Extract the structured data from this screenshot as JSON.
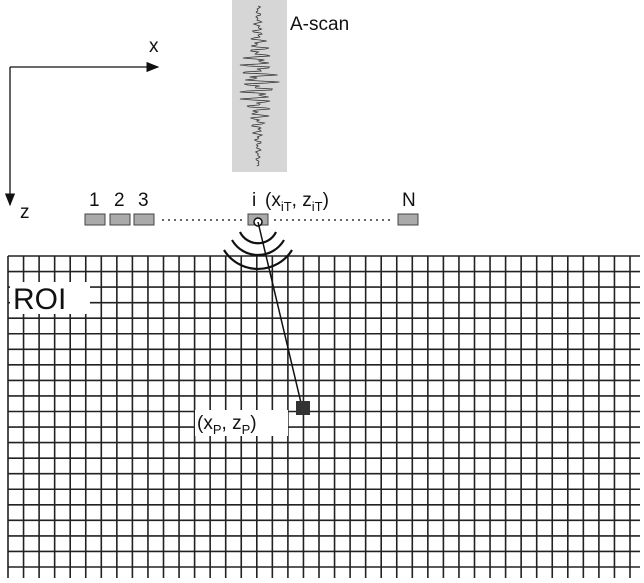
{
  "axes": {
    "x_label": "x",
    "z_label": "z"
  },
  "a_scan": {
    "label": "A-scan"
  },
  "array": {
    "elements": [
      "1",
      "2",
      "3",
      "i",
      "N"
    ],
    "element_position": {
      "open": "(",
      "x": "x",
      "x_sub": "iT",
      "sep": ", ",
      "z": "z",
      "z_sub": "iT",
      "close": ")"
    }
  },
  "roi": {
    "label": "ROI"
  },
  "point": {
    "open": "(",
    "x": "x",
    "x_sub": "P",
    "sep": ", ",
    "z": "z",
    "z_sub": "P",
    "close": ")"
  }
}
